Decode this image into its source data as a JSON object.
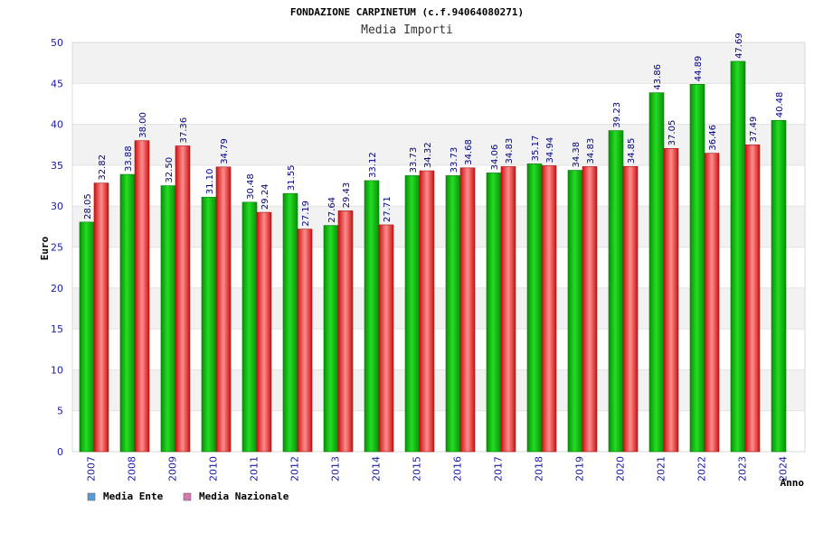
{
  "chart_data": {
    "type": "bar",
    "title": "FONDAZIONE CARPINETUM (c.f.94064080271)",
    "subtitle": "Media Importi",
    "xlabel": "Anno",
    "ylabel": "Euro",
    "ylim": [
      0,
      50
    ],
    "yticks": [
      0,
      5,
      10,
      15,
      20,
      25,
      30,
      35,
      40,
      45,
      50
    ],
    "grid": true,
    "legend_position": "bottom-left",
    "categories": [
      "2007",
      "2008",
      "2009",
      "2010",
      "2011",
      "2012",
      "2013",
      "2014",
      "2015",
      "2016",
      "2017",
      "2018",
      "2019",
      "2020",
      "2021",
      "2022",
      "2023",
      "2024"
    ],
    "series": [
      {
        "name": "Media Ente",
        "legend_color": "#5b9bd5",
        "bar_color": "#13b813",
        "values": [
          28.05,
          33.88,
          32.5,
          31.1,
          30.48,
          31.55,
          27.64,
          33.12,
          33.73,
          33.73,
          34.06,
          35.17,
          34.38,
          39.23,
          43.86,
          44.89,
          47.69,
          40.48
        ],
        "labels": [
          "28.05",
          "33.88",
          "32.50",
          "31.10",
          "30.48",
          "31.55",
          "27.64",
          "33.12",
          "33.73",
          "33.73",
          "34.06",
          "35.17",
          "34.38",
          "39.23",
          "43.86",
          "44.89",
          "47.69",
          "40.48"
        ]
      },
      {
        "name": "Media Nazionale",
        "legend_color": "#d47ab0",
        "bar_color": "#e02020",
        "values": [
          32.82,
          38.0,
          37.36,
          34.79,
          29.24,
          27.19,
          29.43,
          27.71,
          34.32,
          34.68,
          34.83,
          34.94,
          34.83,
          34.85,
          37.05,
          36.46,
          37.49,
          null
        ],
        "labels": [
          "32.82",
          "38.00",
          "37.36",
          "34.79",
          "29.24",
          "27.19",
          "29.43",
          "27.71",
          "34.32",
          "34.68",
          "34.83",
          "34.94",
          "34.83",
          "34.85",
          "37.05",
          "36.46",
          "37.49",
          ""
        ]
      }
    ]
  }
}
